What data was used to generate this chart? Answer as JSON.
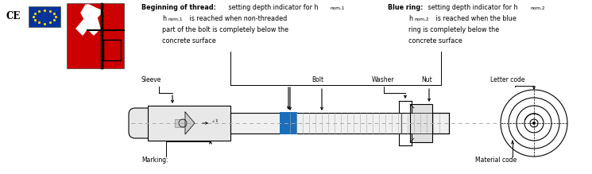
{
  "bg_color": "#ffffff",
  "text_color": "#000000",
  "blue_ring_color": "#1a6fbc",
  "anchor_gray": "#d8d8d8",
  "dark_gray": "#555555",
  "fs_main": 5.8,
  "fs_sub": 4.2,
  "fs_label": 5.5,
  "lw": 0.8,
  "fig_w": 7.45,
  "fig_h": 2.19,
  "dpi": 100,
  "ann1_bold": "Beginning of thread:",
  "ann1_rest": " setting depth indicator for h",
  "ann1_sub": "nom,1",
  "ann1_l2a": "h",
  "ann1_l2sub": "nom,1",
  "ann1_l2b": " is reached when non-threaded",
  "ann1_l3": "part of the bolt is completely below the",
  "ann1_l4": "concrete surface",
  "ann2_bold": "Blue ring:",
  "ann2_rest": " setting depth indicator for h",
  "ann2_sub": "nom,2",
  "ann2_l2a": "h",
  "ann2_l2sub": "nom,2",
  "ann2_l2b": " is reached when the blue",
  "ann2_l3": "ring is completely below the",
  "ann2_l4": "concrete surface",
  "label_sleeve": "Sleeve",
  "label_bolt": "Bolt",
  "label_washer": "Washer",
  "label_nut": "Nut",
  "label_letter": "Letter code",
  "label_marking": "Marking:",
  "label_material": "Material code"
}
